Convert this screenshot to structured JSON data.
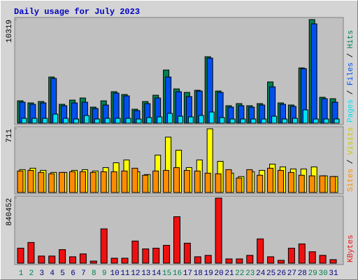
{
  "chart_data": [
    {
      "type": "bar",
      "title": "Daily usage for July 2023",
      "ylim": [
        0,
        10319
      ],
      "yticks": [
        10319
      ],
      "series": [
        {
          "name": "Hits",
          "color": "#008050",
          "values": [
            2230,
            2021,
            2161,
            4600,
            1882,
            2300,
            2509,
            1603,
            2230,
            3137,
            2858,
            1394,
            2161,
            2788,
            5297,
            3415,
            3067,
            3276,
            6622,
            3206,
            1743,
            1952,
            1743,
            1952,
            4112,
            2021,
            1812,
            5506,
            10319,
            2579,
            2440
          ]
        },
        {
          "name": "Files",
          "color": "#0050f0",
          "values": [
            2091,
            1882,
            2021,
            4461,
            1743,
            2021,
            2091,
            1464,
            1812,
            2997,
            2718,
            1255,
            1952,
            2509,
            4600,
            3137,
            2649,
            3206,
            6482,
            3067,
            1603,
            1743,
            1603,
            1812,
            3624,
            1882,
            1673,
            5437,
            9897,
            2440,
            2091
          ]
        },
        {
          "name": "Pages",
          "color": "#00e0f0",
          "values": [
            488,
            488,
            488,
            906,
            488,
            418,
            767,
            418,
            488,
            488,
            488,
            418,
            558,
            627,
            976,
            697,
            627,
            767,
            1115,
            558,
            418,
            418,
            418,
            418,
            697,
            418,
            488,
            1324,
            418,
            418,
            418
          ]
        }
      ],
      "legend_separator": " / "
    },
    {
      "type": "bar",
      "ylim": [
        0,
        711
      ],
      "yticks": [
        711
      ],
      "series": [
        {
          "name": "Visits",
          "color": "#ffff00",
          "values": [
            255,
            271,
            247,
            224,
            224,
            247,
            255,
            240,
            278,
            332,
            363,
            232,
            201,
            417,
            618,
            472,
            278,
            363,
            711,
            348,
            216,
            178,
            232,
            247,
            317,
            286,
            263,
            263,
            286,
            186,
            178
          ]
        },
        {
          "name": "Sites",
          "color": "#ff8c00",
          "values": [
            240,
            247,
            224,
            209,
            224,
            232,
            232,
            224,
            232,
            232,
            240,
            271,
            193,
            240,
            247,
            278,
            247,
            240,
            216,
            209,
            255,
            162,
            255,
            193,
            271,
            247,
            224,
            193,
            186,
            186,
            178
          ]
        }
      ],
      "legend_separator": " / "
    },
    {
      "type": "bar",
      "ylim": [
        0,
        840452
      ],
      "yticks": [
        840452
      ],
      "categories": [
        "1",
        "2",
        "3",
        "4",
        "5",
        "6",
        "7",
        "8",
        "9",
        "10",
        "11",
        "12",
        "13",
        "14",
        "15",
        "16",
        "17",
        "18",
        "19",
        "20",
        "21",
        "22",
        "23",
        "24",
        "25",
        "26",
        "27",
        "28",
        "29",
        "30",
        "31"
      ],
      "category_colors": [
        "#008050",
        "#008050",
        "#000080",
        "#000080",
        "#000080",
        "#000080",
        "#000080",
        "#008050",
        "#008050",
        "#000080",
        "#000080",
        "#000080",
        "#000080",
        "#000080",
        "#008050",
        "#008050",
        "#000080",
        "#000080",
        "#000080",
        "#000080",
        "#000080",
        "#008050",
        "#008050",
        "#000080",
        "#000080",
        "#000080",
        "#000080",
        "#000080",
        "#008050",
        "#008050",
        "#000080"
      ],
      "series": [
        {
          "name": "KBytes",
          "color": "#ee1010",
          "values": [
            193956,
            267844,
            92360,
            92360,
            175484,
            83124,
            120068,
            27708,
            443328,
            64652,
            64652,
            286316,
            184720,
            193956,
            230900,
            600340,
            258608,
            83124,
            101596,
            840452,
            55416,
            55416,
            101596,
            314024,
            83124,
            36944,
            193956,
            249372,
            147776,
            101596,
            46180
          ]
        }
      ]
    }
  ]
}
